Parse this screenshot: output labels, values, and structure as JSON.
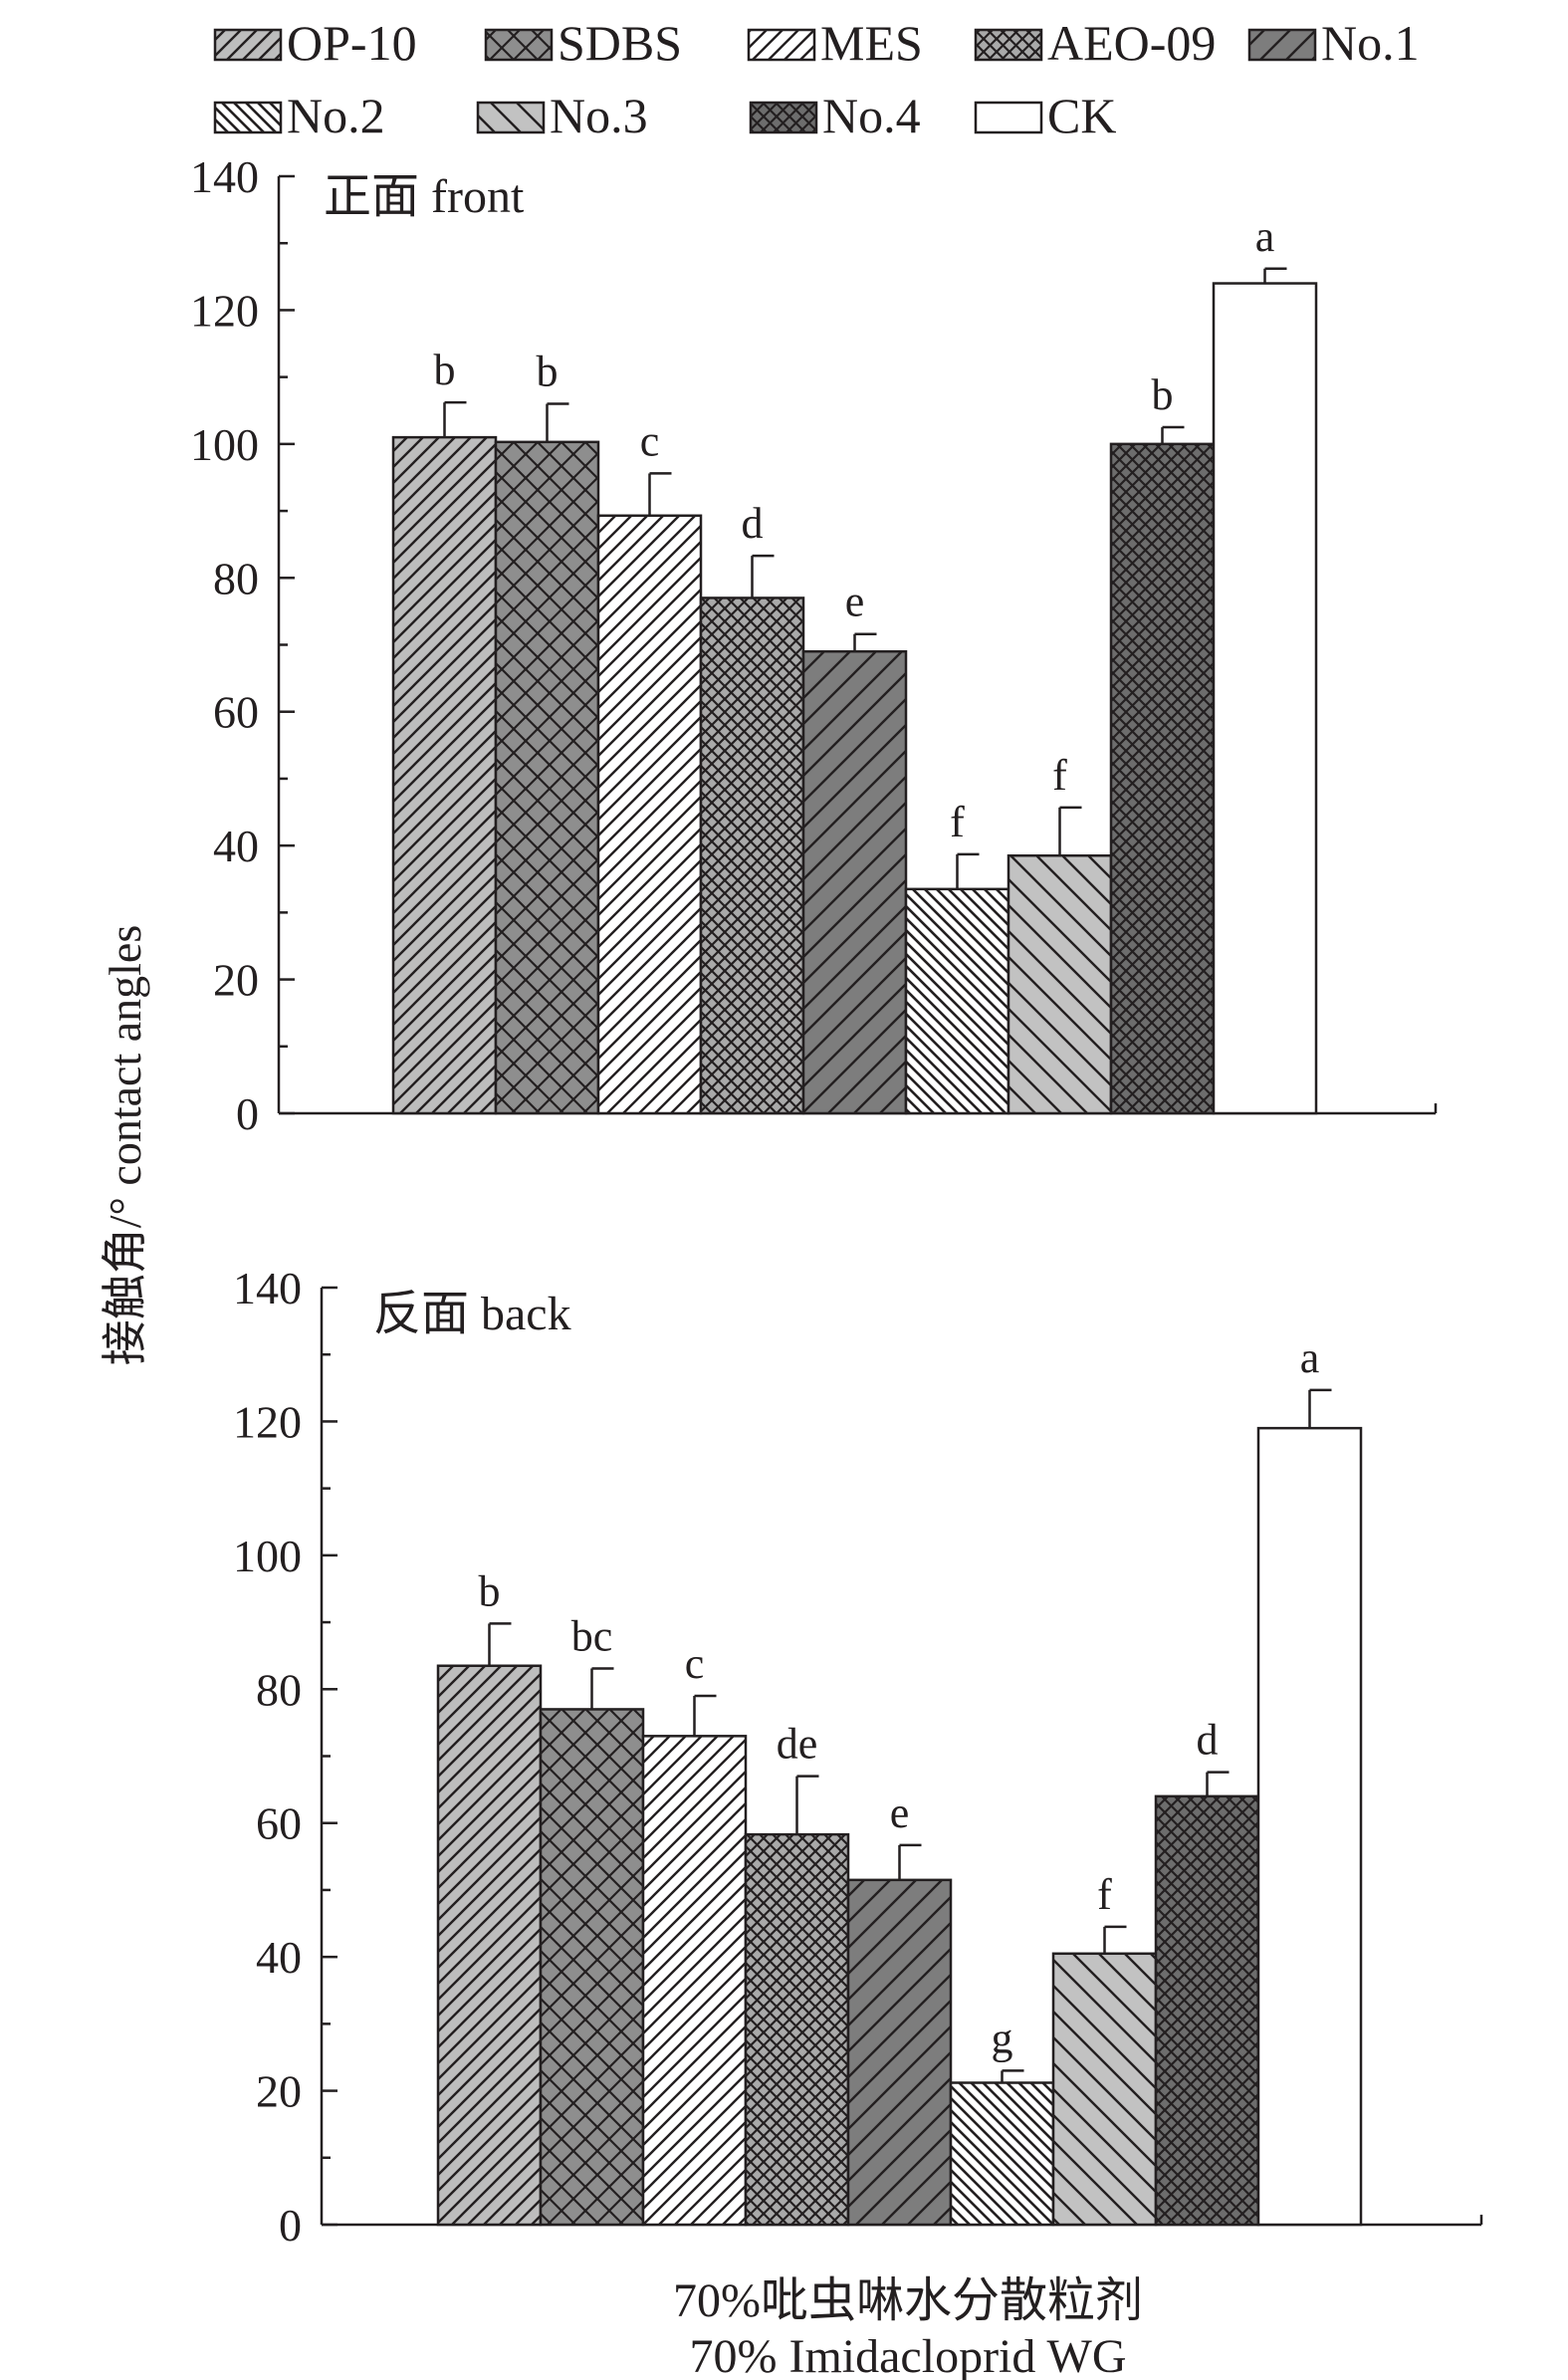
{
  "legend": {
    "entries": [
      "OP-10",
      "SDBS",
      "MES",
      "AEO-09",
      "No.1",
      "No.2",
      "No.3",
      "No.4",
      "CK"
    ]
  },
  "patterns": {
    "OP-10": {
      "kind": "hatch-ne",
      "fill": "#bdbdbd",
      "line": "#231f20"
    },
    "SDBS": {
      "kind": "crosshatch",
      "fill": "#8e8e8e",
      "line": "#231f20"
    },
    "MES": {
      "kind": "hatch-ne",
      "fill": "#ffffff",
      "line": "#231f20"
    },
    "AEO-09": {
      "kind": "crosshatch-dense",
      "fill": "#a9a9a9",
      "line": "#231f20"
    },
    "No.1": {
      "kind": "hatch-ne-wide",
      "fill": "#7d7d7d",
      "line": "#231f20"
    },
    "No.2": {
      "kind": "hatch-nw-dense",
      "fill": "#ffffff",
      "line": "#231f20"
    },
    "No.3": {
      "kind": "hatch-nw-wide",
      "fill": "#c2c2c2",
      "line": "#231f20"
    },
    "No.4": {
      "kind": "crosshatch-dense",
      "fill": "#6d6d6d",
      "line": "#231f20"
    },
    "CK": {
      "kind": "solid",
      "fill": "#ffffff",
      "line": "#231f20"
    }
  },
  "y_axis_title": "接触角/° contact angles",
  "x_axis_title": {
    "line1": "70%吡虫啉水分散粒剂",
    "line2": "70% Imidacloprid WG"
  },
  "chart_data": [
    {
      "type": "bar",
      "panel": "top",
      "title": "正面 front",
      "categories": [
        "OP-10",
        "SDBS",
        "MES",
        "AEO-09",
        "No.1",
        "No.2",
        "No.3",
        "No.4",
        "CK"
      ],
      "values": [
        101,
        100.3,
        89.3,
        77,
        69,
        33.5,
        38.5,
        100,
        124
      ],
      "errors": [
        5.2,
        5.7,
        6.3,
        6.3,
        2.6,
        5.2,
        7.2,
        2.5,
        2.2
      ],
      "labels": [
        "b",
        "b",
        "c",
        "d",
        "e",
        "f",
        "f",
        "b",
        "a"
      ],
      "ylim": [
        0,
        140
      ],
      "yticks": [
        0,
        20,
        40,
        60,
        80,
        100,
        120,
        140
      ],
      "ylabel": "接触角/° contact angles",
      "grid": false
    },
    {
      "type": "bar",
      "panel": "bottom",
      "title": "反面 back",
      "categories": [
        "OP-10",
        "SDBS",
        "MES",
        "AEO-09",
        "No.1",
        "No.2",
        "No.3",
        "No.4",
        "CK"
      ],
      "values": [
        83.5,
        77,
        73,
        58.3,
        51.5,
        21.2,
        40.5,
        64,
        119
      ],
      "errors": [
        6.3,
        6.1,
        6.0,
        8.7,
        5.2,
        1.8,
        4.0,
        3.6,
        5.7
      ],
      "labels": [
        "b",
        "bc",
        "c",
        "de",
        "e",
        "g",
        "f",
        "d",
        "a"
      ],
      "ylim": [
        0,
        140
      ],
      "yticks": [
        0,
        20,
        40,
        60,
        80,
        100,
        120,
        140
      ],
      "xlabel": "70%吡虫啉水分散粒剂 70% Imidacloprid WG",
      "grid": false
    }
  ]
}
